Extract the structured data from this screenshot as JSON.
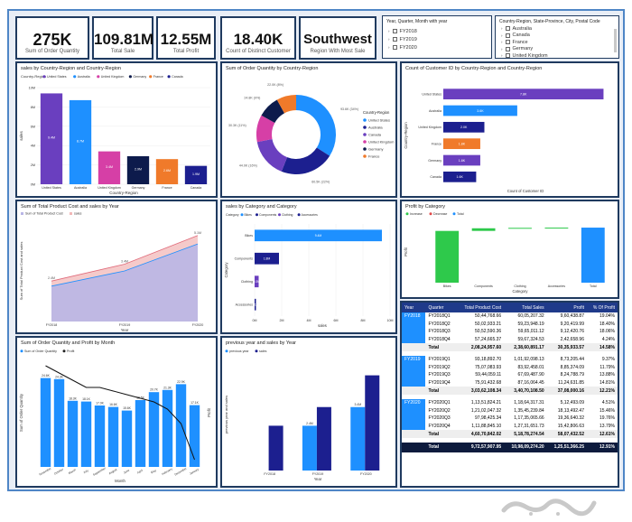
{
  "kpis": [
    {
      "value": "275K",
      "label": "Sum of Order Quantity"
    },
    {
      "value": "109.81M",
      "label": "Total Sale"
    },
    {
      "value": "12.55M",
      "label": "Total Profit"
    },
    {
      "value": "18.40K",
      "label": "Count of Distinct Customer"
    },
    {
      "value": "Southwest",
      "label": "Region With Most Sale"
    }
  ],
  "slicer_year": {
    "title": "Year, Quarter, Month with year",
    "items": [
      "FY2018",
      "FY2019",
      "FY2020"
    ]
  },
  "slicer_geo": {
    "title": "Country-Region, State-Province, City, Postal Code",
    "items": [
      "Australia",
      "Canada",
      "France",
      "Germany",
      "United Kingdom"
    ]
  },
  "colors": {
    "blue": "#1e90ff",
    "purple": "#6a3fbf",
    "pink": "#d63fa6",
    "orange": "#f07a2a",
    "navy": "#1c1f8f",
    "darknavy": "#0d1b4c",
    "green": "#2ec94b",
    "lilac": "#b9b6e6",
    "salmon": "#f2b8b8"
  },
  "chart_data": [
    {
      "id": "sales_country",
      "type": "bar",
      "title": "sales by Country-Region and Country-Region",
      "legend_title": "Country-Region",
      "categories": [
        "United States",
        "Australia",
        "United Kingdom",
        "Germany",
        "France",
        "Canada"
      ],
      "values": [
        9.4,
        8.7,
        3.4,
        2.9,
        2.6,
        1.9
      ],
      "data_labels": [
        "9.4M",
        "8.7M",
        "3.4M",
        "2.9M",
        "2.6M",
        "1.9M"
      ],
      "xlabel": "Country-Region",
      "ylabel": "sales",
      "ytick_labels": [
        "0M",
        "2M",
        "4M",
        "6M",
        "8M",
        "10M"
      ],
      "ylim": [
        0,
        10
      ]
    },
    {
      "id": "donut",
      "type": "pie",
      "title": "Sum of Order Quantity by Country-Region",
      "legend_title": "Country-Region",
      "categories": [
        "United States",
        "Australia",
        "Canada",
        "United Kingdom",
        "Germany",
        "France"
      ],
      "values": [
        34,
        22,
        16,
        11,
        9,
        8
      ],
      "data_labels": [
        "93.6K (34%)",
        "60.5K (22%)",
        "44.0K (16%)",
        "30.3K (11%)",
        "24.8K (9%)",
        "22.0K (8%)"
      ]
    },
    {
      "id": "customers",
      "type": "bar",
      "title": "Count of Customer ID by Country-Region and Country-Region",
      "categories": [
        "United States",
        "Australia",
        "United Kingdom",
        "France",
        "Germany",
        "Canada"
      ],
      "values": [
        7.8,
        3.6,
        2.0,
        1.8,
        1.8,
        1.6
      ],
      "data_labels": [
        "7.8K",
        "3.6K",
        "2.0K",
        "1.8K",
        "1.8K",
        "1.6K"
      ],
      "xlabel": "Count of Customer ID",
      "ylabel": "Country-Region"
    },
    {
      "id": "cost_sales",
      "type": "area",
      "title": "Sum of Total Product Cost and sales by Year",
      "legend": [
        "Sum of Total Product Cost",
        "sales"
      ],
      "categories": [
        "FY2018",
        "FY2019",
        "FY2020"
      ],
      "series": [
        {
          "name": "Sum of Total Product Cost",
          "values": [
            2.1,
            3.0,
            4.6
          ]
        },
        {
          "name": "sales",
          "values": [
            2.4,
            3.4,
            5.1
          ]
        }
      ],
      "data_labels": [
        "2.4M",
        "3.4M",
        "5.1M"
      ],
      "xlabel": "Year",
      "ylabel": "Sum of Total Product Cost and sales",
      "ylim": [
        0,
        6
      ]
    },
    {
      "id": "category_sales",
      "type": "bar",
      "title": "sales by Category and Category",
      "legend_title": "Category",
      "categories": [
        "Bikes",
        "Components",
        "Clothing",
        "Accessories"
      ],
      "values": [
        9.4,
        1.8,
        0.3,
        0.1
      ],
      "data_labels": [
        "9.4M",
        "1.8M",
        "0.3M",
        "0.1M"
      ],
      "xlabel": "sales",
      "ylabel": "Category",
      "xtick_labels": [
        "0M",
        "2M",
        "4M",
        "6M",
        "8M",
        "10M"
      ],
      "xlim": [
        0,
        10
      ]
    },
    {
      "id": "profit_waterfall",
      "type": "bar",
      "title": "Profit by Category",
      "legend": [
        "Increase",
        "Decrease",
        "Total"
      ],
      "categories": [
        "Bikes",
        "Components",
        "Clothing",
        "Accessories",
        "Total"
      ],
      "values": [
        11.8,
        0.6,
        0.1,
        0.05,
        12.55
      ],
      "xlabel": "Category",
      "ylabel": "Profit",
      "ylim": [
        0,
        14
      ]
    },
    {
      "id": "qty_profit_month",
      "type": "bar",
      "title": "Sum of Order Quantity and Profit by Month",
      "legend": [
        "Sum of Order Quantity",
        "Profit"
      ],
      "categories": [
        "November",
        "October",
        "March",
        "July",
        "September",
        "August",
        "June",
        "April",
        "May",
        "February",
        "December",
        "January"
      ],
      "series": [
        {
          "name": "Sum of Order Quantity",
          "values": [
            24.6,
            24.3,
            18.3,
            18.1,
            17.0,
            16.6,
            15.6,
            18.5,
            20.7,
            21.3,
            22.9,
            17.1
          ]
        },
        {
          "name": "Profit",
          "values": [
            1.4,
            1.3,
            1.2,
            1.1,
            1.1,
            1.05,
            1.0,
            0.95,
            0.9,
            0.8,
            0.6,
            0.1
          ]
        }
      ],
      "data_labels": [
        "24.6K",
        "24.3K",
        "18.3K",
        "18.1K",
        "17.0K",
        "16.6K",
        "15.6K",
        "18.5K",
        "20.7K",
        "21.3K",
        "22.9K",
        "17.1K"
      ],
      "xlabel": "Month",
      "ylabel": "Sum of Order Quantity",
      "y2label": "Profit",
      "ylim": [
        0,
        30
      ]
    },
    {
      "id": "prev_year",
      "type": "bar",
      "title": "previous year and sales by Year",
      "legend": [
        "previous year",
        "sales"
      ],
      "categories": [
        "FY2018",
        "FY2019",
        "FY2020"
      ],
      "series": [
        {
          "name": "previous year",
          "values": [
            0,
            2.4,
            3.4
          ]
        },
        {
          "name": "sales",
          "values": [
            2.4,
            3.4,
            5.1
          ]
        }
      ],
      "data_labels": [
        "",
        "2.4M",
        "3.4M"
      ],
      "xlabel": "Year",
      "ylabel": "previous year and sales",
      "ylim": [
        0,
        6
      ]
    }
  ],
  "matrix": {
    "headers": [
      "Year",
      "Quarter",
      "Total Product Cost",
      "Total Sales",
      "Profit",
      "% Of Profit"
    ],
    "groups": [
      {
        "year": "FY2018",
        "rows": [
          [
            "FY2018Q1",
            "50,44,768.66",
            "60,05,207.32",
            "9,60,438.87",
            "19.04%"
          ],
          [
            "FY2018Q2",
            "50,02,933.21",
            "59,23,948.19",
            "9,20,419.99",
            "18.40%"
          ],
          [
            "FY2018Q3",
            "50,52,590.36",
            "59,65,011.12",
            "9,12,420.76",
            "18.06%"
          ],
          [
            "FY2018Q4",
            "57,24,665.37",
            "59,67,324.53",
            "2,42,658.96",
            "4.24%"
          ]
        ],
        "total": [
          "Total",
          "2,08,24,957.60",
          "2,38,60,891.17",
          "30,35,933.57",
          "14.58%"
        ]
      },
      {
        "year": "FY2019",
        "rows": [
          [
            "FY2019Q1",
            "93,18,892.70",
            "1,01,92,098.13",
            "8,73,205.44",
            "9.37%"
          ],
          [
            "FY2019Q2",
            "75,07,083.93",
            "83,92,458.01",
            "8,85,374.09",
            "11.79%"
          ],
          [
            "FY2019Q3",
            "59,44,059.11",
            "67,69,487.90",
            "8,24,788.79",
            "13.88%"
          ],
          [
            "FY2019Q4",
            "75,91,432.68",
            "87,16,064.45",
            "11,24,631.85",
            "14.81%"
          ]
        ],
        "total": [
          "Total",
          "3,03,62,108.34",
          "3,40,70,108.50",
          "37,08,000.16",
          "12.21%"
        ]
      },
      {
        "year": "FY2020",
        "rows": [
          [
            "FY2020Q1",
            "1,13,51,824.21",
            "1,18,64,317.31",
            "5,12,493.09",
            "4.51%"
          ],
          [
            "FY2020Q2",
            "1,21,02,047.32",
            "1,35,45,239.84",
            "18,13,492.47",
            "15.46%"
          ],
          [
            "FY2020Q3",
            "97,98,425.34",
            "1,17,35,065.66",
            "19,36,640.32",
            "19.76%"
          ],
          [
            "FY2020Q4",
            "1,11,88,845.10",
            "1,27,31,651.73",
            "15,42,806.63",
            "13.79%"
          ]
        ],
        "total": [
          "Total",
          "4,60,70,842.02",
          "5,18,78,274.54",
          "58,07,432.52",
          "12.61%"
        ]
      }
    ],
    "grand_total": [
      "Total",
      "9,72,57,907.95",
      "10,98,09,274.20",
      "1,25,51,366.25",
      "12.91%"
    ]
  }
}
